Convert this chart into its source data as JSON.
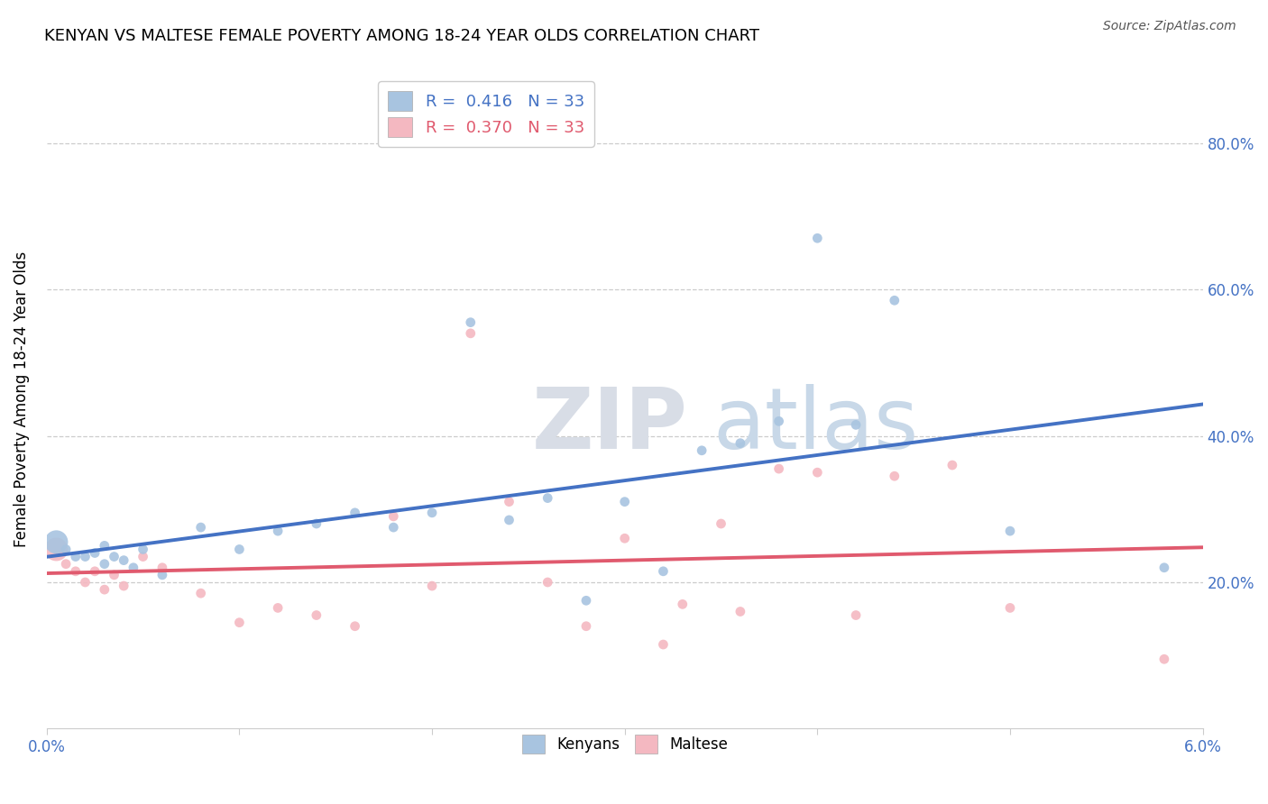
{
  "title": "KENYAN VS MALTESE FEMALE POVERTY AMONG 18-24 YEAR OLDS CORRELATION CHART",
  "source": "Source: ZipAtlas.com",
  "ylabel": "Female Poverty Among 18-24 Year Olds",
  "xlim": [
    0.0,
    0.06
  ],
  "ylim": [
    0.0,
    0.9
  ],
  "xtick_labels": [
    "0.0%",
    "",
    "",
    "",
    "",
    "",
    "6.0%"
  ],
  "xtick_vals": [
    0.0,
    0.01,
    0.02,
    0.03,
    0.04,
    0.05,
    0.06
  ],
  "ytick_vals": [
    0.2,
    0.4,
    0.6,
    0.8
  ],
  "right_ytick_labels": [
    "20.0%",
    "40.0%",
    "60.0%",
    "80.0%"
  ],
  "R_kenyan": 0.416,
  "N_kenyan": 33,
  "R_maltese": 0.37,
  "N_maltese": 33,
  "kenyan_color": "#a8c4e0",
  "maltese_color": "#f4b8c1",
  "kenyan_line_color": "#4472c4",
  "maltese_line_color": "#e05a6e",
  "legend_kenyan_label": "Kenyans",
  "legend_maltese_label": "Maltese",
  "watermark_zip": "ZIP",
  "watermark_atlas": "atlas",
  "kenyan_x": [
    0.0005,
    0.001,
    0.0015,
    0.002,
    0.0025,
    0.003,
    0.003,
    0.0035,
    0.004,
    0.0045,
    0.005,
    0.006,
    0.008,
    0.01,
    0.012,
    0.014,
    0.016,
    0.018,
    0.02,
    0.022,
    0.024,
    0.026,
    0.028,
    0.03,
    0.032,
    0.034,
    0.036,
    0.038,
    0.04,
    0.042,
    0.044,
    0.05,
    0.058
  ],
  "kenyan_y": [
    0.255,
    0.245,
    0.235,
    0.235,
    0.24,
    0.25,
    0.225,
    0.235,
    0.23,
    0.22,
    0.245,
    0.21,
    0.275,
    0.245,
    0.27,
    0.28,
    0.295,
    0.275,
    0.295,
    0.555,
    0.285,
    0.315,
    0.175,
    0.31,
    0.215,
    0.38,
    0.39,
    0.42,
    0.67,
    0.415,
    0.585,
    0.27,
    0.22
  ],
  "kenyan_sizes": [
    350,
    60,
    60,
    60,
    60,
    60,
    60,
    60,
    60,
    60,
    60,
    60,
    60,
    60,
    60,
    60,
    60,
    60,
    60,
    60,
    60,
    60,
    60,
    60,
    60,
    60,
    60,
    60,
    60,
    60,
    60,
    60,
    60
  ],
  "maltese_x": [
    0.0005,
    0.001,
    0.0015,
    0.002,
    0.0025,
    0.003,
    0.0035,
    0.004,
    0.005,
    0.006,
    0.008,
    0.01,
    0.012,
    0.014,
    0.016,
    0.018,
    0.02,
    0.022,
    0.024,
    0.026,
    0.028,
    0.03,
    0.032,
    0.033,
    0.035,
    0.036,
    0.038,
    0.04,
    0.042,
    0.044,
    0.047,
    0.05,
    0.058
  ],
  "maltese_y": [
    0.245,
    0.225,
    0.215,
    0.2,
    0.215,
    0.19,
    0.21,
    0.195,
    0.235,
    0.22,
    0.185,
    0.145,
    0.165,
    0.155,
    0.14,
    0.29,
    0.195,
    0.54,
    0.31,
    0.2,
    0.14,
    0.26,
    0.115,
    0.17,
    0.28,
    0.16,
    0.355,
    0.35,
    0.155,
    0.345,
    0.36,
    0.165,
    0.095
  ],
  "maltese_sizes": [
    350,
    60,
    60,
    60,
    60,
    60,
    60,
    60,
    60,
    60,
    60,
    60,
    60,
    60,
    60,
    60,
    60,
    60,
    60,
    60,
    60,
    60,
    60,
    60,
    60,
    60,
    60,
    60,
    60,
    60,
    60,
    60,
    60
  ]
}
